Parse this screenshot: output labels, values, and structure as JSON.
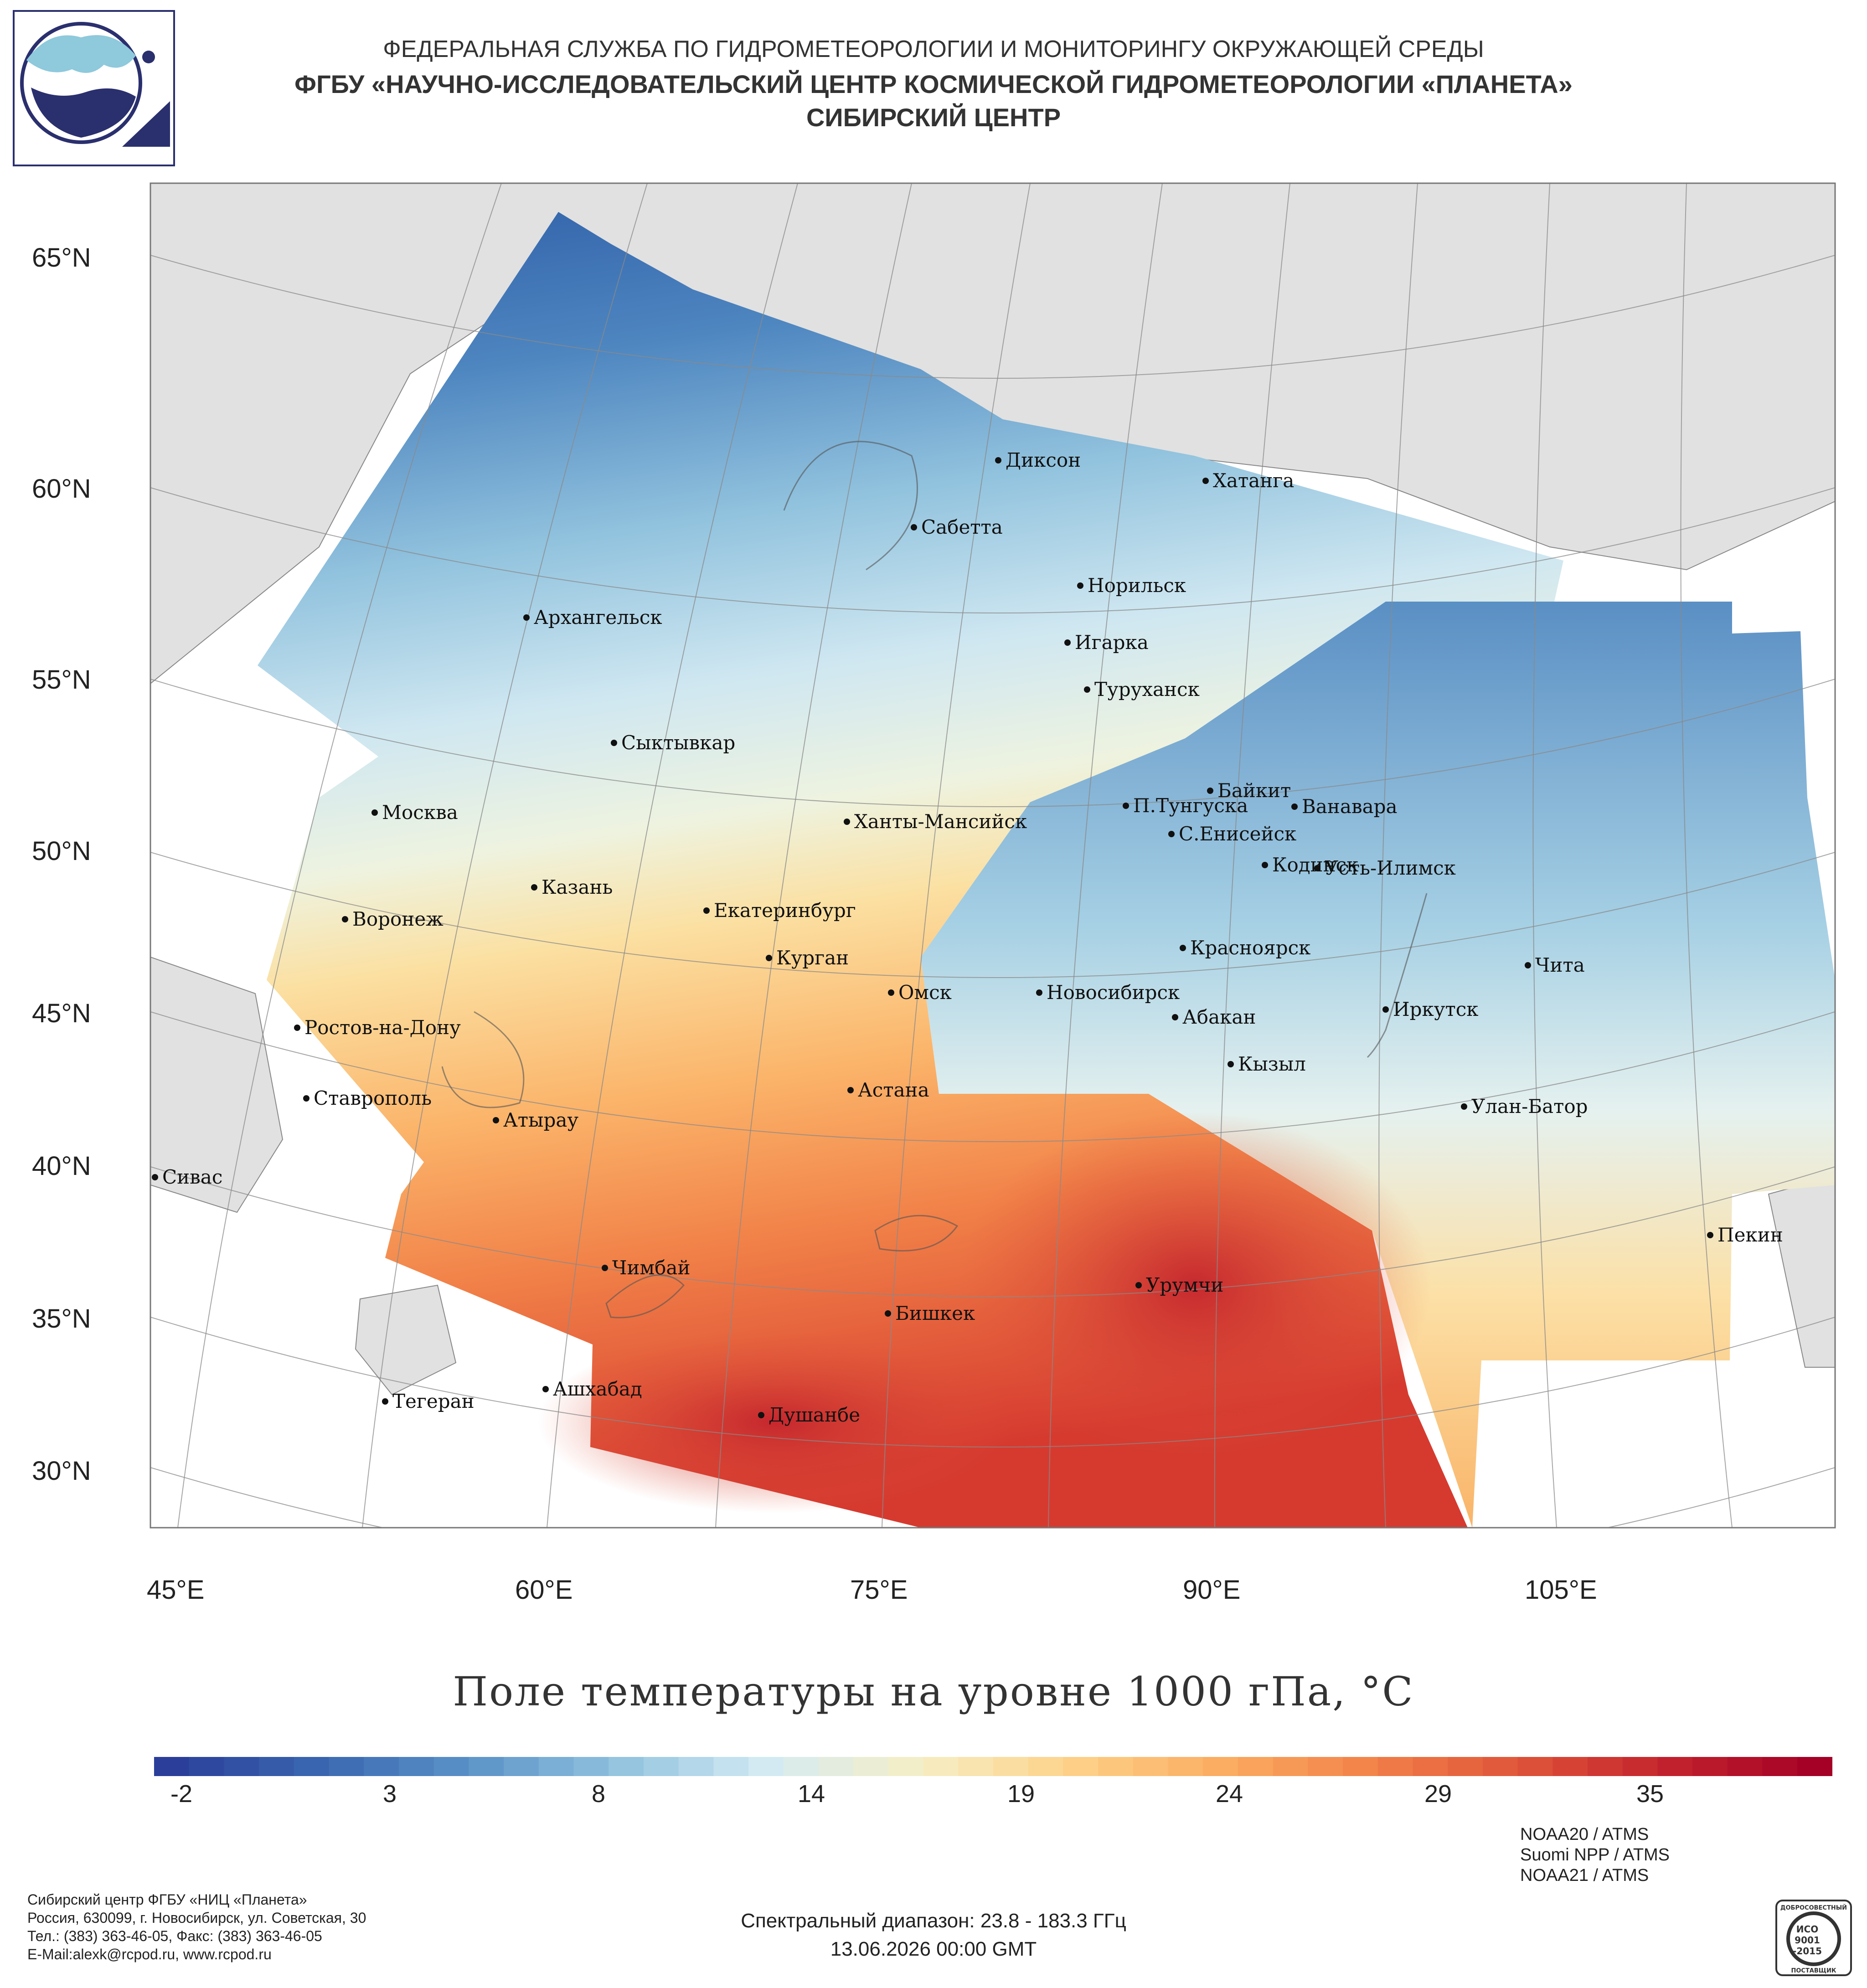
{
  "header": {
    "line1": "ФЕДЕРАЛЬНАЯ СЛУЖБА ПО ГИДРОМЕТЕОРОЛОГИИ И МОНИТОРИНГУ ОКРУЖАЮЩЕЙ СРЕДЫ",
    "line2": "ФГБУ «НАУЧНО-ИССЛЕДОВАТЕЛЬСКИЙ ЦЕНТР КОСМИЧЕСКОЙ ГИДРОМЕТЕОРОЛОГИИ «ПЛАНЕТА»",
    "line3": "СИБИРСКИЙ ЦЕНТР"
  },
  "map": {
    "lat_labels": [
      "65°N",
      "60°N",
      "55°N",
      "50°N",
      "45°N",
      "40°N",
      "35°N",
      "30°N"
    ],
    "lon_labels": [
      "45°E",
      "60°E",
      "75°E",
      "90°E",
      "105°E"
    ],
    "cities": [
      "Диксон",
      "Хатанга",
      "Сабетта",
      "Норильск",
      "Архангельск",
      "Игарка",
      "Туруханск",
      "Сыктывкар",
      "Байкит",
      "Москва",
      "П.Тунгуска",
      "Ванавара",
      "Ханты-Мансийск",
      "С.Енисейск",
      "Кодинск",
      "Усть-Илимск",
      "Казань",
      "Екатеринбург",
      "Воронеж",
      "Красноярск",
      "Курган",
      "Чита",
      "Омск",
      "Новосибирск",
      "Ростов-на-Дону",
      "Иркутск",
      "Абакан",
      "Кызыл",
      "Астана",
      "Ставрополь",
      "Улан-Батор",
      "Атырау",
      "Сивас",
      "Пекин",
      "Чимбай",
      "Урумчи",
      "Бишкек",
      "Ашхабад",
      "Тегеран",
      "Душанбе"
    ]
  },
  "colorbar": {
    "title": "Поле температуры на уровне 1000 гПа, °C",
    "ticks": [
      "-2",
      "3",
      "8",
      "14",
      "19",
      "24",
      "29",
      "35"
    ],
    "colors": [
      "#2b3e9a",
      "#3a67b0",
      "#5b93c8",
      "#92c3de",
      "#d4ebf3",
      "#f6eec6",
      "#fdd28a",
      "#fbae62",
      "#f3834a",
      "#e0553a",
      "#c3232d",
      "#a50026"
    ]
  },
  "footer": {
    "org_lines": [
      "Сибирский центр ФГБУ «НИЦ «Планета»",
      "Россия, 630099, г. Новосибирск, ул. Советская, 30",
      "Тел.: (383) 363-46-05, Факс: (383) 363-46-05",
      "E-Mail:alexk@rcpod.ru, www.rcpod.ru"
    ],
    "satellites": [
      "NOAA20 / ATMS",
      "Suomi NPP / ATMS",
      "NOAA21 / ATMS"
    ],
    "spectral": "Спектральный диапазон: 23.8 - 183.3 ГГц",
    "datetime": "13.06.2026 00:00 GMT",
    "iso_text": [
      "ДОБРОСОВЕСТНЫЙ",
      "ИСО",
      "9001",
      "-2015",
      "ПОСТАВЩИК"
    ]
  }
}
